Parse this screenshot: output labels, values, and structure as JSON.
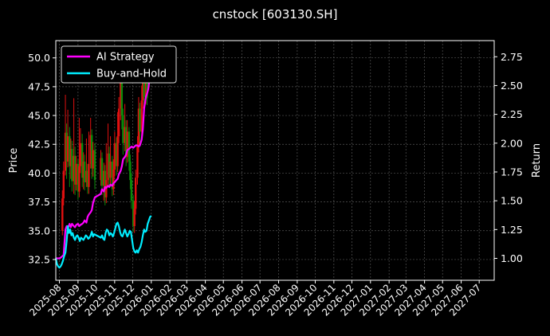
{
  "chart_data": {
    "type": "line",
    "title": "cnstock [603130.SH]",
    "ylabel_left": "Price",
    "ylabel_right": "Return",
    "xlabel": "",
    "grid": true,
    "legend_position": "upper-left",
    "x_ticks": [
      "2025-08",
      "2025-09",
      "2025-10",
      "2025-11",
      "2025-12",
      "2026-01",
      "2026-02",
      "2026-03",
      "2026-04",
      "2026-05",
      "2026-06",
      "2026-07",
      "2026-08",
      "2026-09",
      "2026-10",
      "2026-11",
      "2026-12",
      "2027-01",
      "2027-02",
      "2027-03",
      "2027-04",
      "2027-05",
      "2027-06",
      "2027-07"
    ],
    "xlim": [
      "2025-07-26",
      "2027-07-26"
    ],
    "ylim_left": [
      30.7,
      51.5
    ],
    "ylim_right": [
      0.81,
      2.89
    ],
    "y_ticks_left": [
      "32.5",
      "35.0",
      "37.5",
      "40.0",
      "42.5",
      "45.0",
      "47.5",
      "50.0"
    ],
    "y_ticks_right": [
      "1.00",
      "1.25",
      "1.50",
      "1.75",
      "2.00",
      "2.25",
      "2.50",
      "2.75"
    ],
    "colors": {
      "background": "#000000",
      "grid": "#555555",
      "ai_strategy": "#ff00ff",
      "buy_and_hold": "#00eeff",
      "candle_up": "#e01010",
      "candle_down": "#0a8a0a"
    },
    "series": [
      {
        "name": "AI Strategy",
        "axis": "right",
        "x": [
          "2025-07-26",
          "2025-07-29",
          "2025-08-01",
          "2025-08-04",
          "2025-08-06",
          "2025-08-08",
          "2025-08-11",
          "2025-08-13",
          "2025-08-15",
          "2025-08-18",
          "2025-08-20",
          "2025-08-22",
          "2025-08-25",
          "2025-08-27",
          "2025-08-29",
          "2025-09-01",
          "2025-09-03",
          "2025-09-05",
          "2025-09-08",
          "2025-09-10",
          "2025-09-12",
          "2025-09-15",
          "2025-09-17",
          "2025-09-19",
          "2025-09-22",
          "2025-09-24",
          "2025-09-26",
          "2025-09-29",
          "2025-10-09",
          "2025-10-11",
          "2025-10-14",
          "2025-10-16",
          "2025-10-18",
          "2025-10-21",
          "2025-10-23",
          "2025-10-25",
          "2025-10-28",
          "2025-10-30",
          "2025-11-01",
          "2025-11-04",
          "2025-11-06",
          "2025-11-08",
          "2025-11-11",
          "2025-11-13",
          "2025-11-15",
          "2025-11-18",
          "2025-11-20",
          "2025-11-22",
          "2025-11-25",
          "2025-11-27",
          "2025-11-29",
          "2025-12-02",
          "2025-12-04",
          "2025-12-06",
          "2025-12-09",
          "2025-12-11",
          "2025-12-13",
          "2025-12-16",
          "2025-12-18",
          "2025-12-20",
          "2025-12-23",
          "2025-12-25",
          "2025-12-27",
          "2025-12-29"
        ],
        "values": [
          1.0,
          1.0,
          1.0,
          1.01,
          1.02,
          1.03,
          1.25,
          1.28,
          1.26,
          1.3,
          1.27,
          1.3,
          1.28,
          1.27,
          1.29,
          1.3,
          1.28,
          1.29,
          1.3,
          1.31,
          1.33,
          1.31,
          1.36,
          1.38,
          1.4,
          1.42,
          1.48,
          1.53,
          1.56,
          1.6,
          1.58,
          1.62,
          1.61,
          1.63,
          1.62,
          1.64,
          1.63,
          1.65,
          1.66,
          1.68,
          1.69,
          1.73,
          1.76,
          1.8,
          1.86,
          1.88,
          1.9,
          1.94,
          1.95,
          1.96,
          1.97,
          1.96,
          1.97,
          1.98,
          1.98,
          1.97,
          1.98,
          2.03,
          2.12,
          2.3,
          2.4,
          2.43,
          2.47,
          2.55
        ]
      },
      {
        "name": "Buy-and-Hold",
        "axis": "right",
        "x": [
          "2025-07-26",
          "2025-07-28",
          "2025-07-30",
          "2025-08-01",
          "2025-08-03",
          "2025-08-05",
          "2025-08-07",
          "2025-08-09",
          "2025-08-11",
          "2025-08-13",
          "2025-08-15",
          "2025-08-17",
          "2025-08-19",
          "2025-08-21",
          "2025-08-23",
          "2025-08-25",
          "2025-08-27",
          "2025-08-29",
          "2025-08-31",
          "2025-09-02",
          "2025-09-04",
          "2025-09-06",
          "2025-09-08",
          "2025-09-10",
          "2025-09-12",
          "2025-09-14",
          "2025-09-16",
          "2025-09-18",
          "2025-09-20",
          "2025-09-22",
          "2025-09-24",
          "2025-09-26",
          "2025-09-28",
          "2025-10-09",
          "2025-10-11",
          "2025-10-13",
          "2025-10-15",
          "2025-10-17",
          "2025-10-19",
          "2025-10-21",
          "2025-10-23",
          "2025-10-25",
          "2025-10-27",
          "2025-10-29",
          "2025-10-31",
          "2025-11-02",
          "2025-11-04",
          "2025-11-06",
          "2025-11-08",
          "2025-11-10",
          "2025-11-12",
          "2025-11-14",
          "2025-11-16",
          "2025-11-18",
          "2025-11-20",
          "2025-11-22",
          "2025-11-24",
          "2025-11-26",
          "2025-11-28",
          "2025-11-30",
          "2025-12-02",
          "2025-12-04",
          "2025-12-06",
          "2025-12-08",
          "2025-12-10",
          "2025-12-12",
          "2025-12-14",
          "2025-12-16",
          "2025-12-18",
          "2025-12-20",
          "2025-12-22",
          "2025-12-24",
          "2025-12-26",
          "2025-12-28",
          "2025-12-30",
          "2026-01-01"
        ],
        "values": [
          1.0,
          0.95,
          0.93,
          0.92,
          0.93,
          0.95,
          0.98,
          1.02,
          1.05,
          1.15,
          1.28,
          1.22,
          1.25,
          1.2,
          1.22,
          1.18,
          1.16,
          1.19,
          1.2,
          1.18,
          1.15,
          1.18,
          1.17,
          1.16,
          1.18,
          1.2,
          1.19,
          1.17,
          1.18,
          1.2,
          1.23,
          1.19,
          1.21,
          1.18,
          1.2,
          1.17,
          1.16,
          1.22,
          1.25,
          1.24,
          1.2,
          1.22,
          1.21,
          1.19,
          1.22,
          1.26,
          1.3,
          1.31,
          1.28,
          1.23,
          1.2,
          1.19,
          1.22,
          1.25,
          1.22,
          1.19,
          1.21,
          1.24,
          1.23,
          1.16,
          1.09,
          1.06,
          1.05,
          1.07,
          1.05,
          1.08,
          1.1,
          1.14,
          1.2,
          1.25,
          1.23,
          1.24,
          1.3,
          1.33,
          1.36,
          1.37
        ]
      }
    ],
    "candles": [
      {
        "date": "2025-08-06",
        "open": 35.0,
        "close": 37.8,
        "low": 34.6,
        "high": 38.5
      },
      {
        "date": "2025-08-08",
        "open": 37.8,
        "close": 40.2,
        "low": 37.2,
        "high": 41.0
      },
      {
        "date": "2025-08-11",
        "open": 40.2,
        "close": 43.5,
        "low": 39.8,
        "high": 46.8
      },
      {
        "date": "2025-08-13",
        "open": 43.5,
        "close": 41.0,
        "low": 39.5,
        "high": 44.3
      },
      {
        "date": "2025-08-15",
        "open": 41.0,
        "close": 43.2,
        "low": 40.5,
        "high": 45.5
      },
      {
        "date": "2025-08-18",
        "open": 43.2,
        "close": 40.6,
        "low": 38.8,
        "high": 44.0
      },
      {
        "date": "2025-08-20",
        "open": 40.6,
        "close": 42.1,
        "low": 39.5,
        "high": 43.0
      },
      {
        "date": "2025-08-22",
        "open": 42.1,
        "close": 39.3,
        "low": 38.4,
        "high": 42.8
      },
      {
        "date": "2025-08-25",
        "open": 39.3,
        "close": 41.5,
        "low": 38.2,
        "high": 46.5
      },
      {
        "date": "2025-08-27",
        "open": 41.5,
        "close": 39.0,
        "low": 38.1,
        "high": 42.3
      },
      {
        "date": "2025-08-29",
        "open": 39.0,
        "close": 40.8,
        "low": 38.5,
        "high": 41.5
      },
      {
        "date": "2025-09-01",
        "open": 40.8,
        "close": 38.4,
        "low": 37.7,
        "high": 41.2
      },
      {
        "date": "2025-09-03",
        "open": 38.4,
        "close": 40.6,
        "low": 37.9,
        "high": 44.8
      },
      {
        "date": "2025-09-05",
        "open": 40.6,
        "close": 42.6,
        "low": 40.0,
        "high": 43.9
      },
      {
        "date": "2025-09-08",
        "open": 42.6,
        "close": 39.6,
        "low": 38.8,
        "high": 43.4
      },
      {
        "date": "2025-09-10",
        "open": 39.6,
        "close": 41.0,
        "low": 38.6,
        "high": 41.8
      },
      {
        "date": "2025-09-12",
        "open": 41.0,
        "close": 39.2,
        "low": 38.5,
        "high": 41.6
      },
      {
        "date": "2025-09-15",
        "open": 39.2,
        "close": 40.2,
        "low": 38.8,
        "high": 43.0
      },
      {
        "date": "2025-09-17",
        "open": 40.2,
        "close": 38.8,
        "low": 38.2,
        "high": 40.8
      },
      {
        "date": "2025-09-19",
        "open": 38.8,
        "close": 40.8,
        "low": 38.2,
        "high": 43.6
      },
      {
        "date": "2025-09-22",
        "open": 40.8,
        "close": 43.3,
        "low": 40.4,
        "high": 44.8
      },
      {
        "date": "2025-09-24",
        "open": 43.3,
        "close": 40.4,
        "low": 39.5,
        "high": 43.8
      },
      {
        "date": "2025-09-26",
        "open": 40.4,
        "close": 42.0,
        "low": 39.7,
        "high": 42.7
      },
      {
        "date": "2025-09-29",
        "open": 42.0,
        "close": 39.4,
        "low": 38.6,
        "high": 42.6
      },
      {
        "date": "2025-10-09",
        "open": 39.4,
        "close": 41.3,
        "low": 38.9,
        "high": 42.0
      },
      {
        "date": "2025-10-11",
        "open": 41.3,
        "close": 38.9,
        "low": 38.1,
        "high": 41.8
      },
      {
        "date": "2025-10-14",
        "open": 38.9,
        "close": 40.2,
        "low": 37.6,
        "high": 40.9
      },
      {
        "date": "2025-10-16",
        "open": 40.2,
        "close": 37.9,
        "low": 37.2,
        "high": 40.7
      },
      {
        "date": "2025-10-18",
        "open": 37.9,
        "close": 39.4,
        "low": 37.4,
        "high": 42.6
      },
      {
        "date": "2025-10-21",
        "open": 39.4,
        "close": 41.7,
        "low": 38.9,
        "high": 44.3
      },
      {
        "date": "2025-10-23",
        "open": 41.7,
        "close": 39.6,
        "low": 38.7,
        "high": 42.3
      },
      {
        "date": "2025-10-25",
        "open": 39.6,
        "close": 41.0,
        "low": 39.0,
        "high": 43.2
      },
      {
        "date": "2025-10-28",
        "open": 41.0,
        "close": 38.6,
        "low": 38.0,
        "high": 41.5
      },
      {
        "date": "2025-10-30",
        "open": 38.6,
        "close": 40.3,
        "low": 38.1,
        "high": 41.2
      },
      {
        "date": "2025-11-01",
        "open": 40.3,
        "close": 42.6,
        "low": 39.7,
        "high": 43.6
      },
      {
        "date": "2025-11-04",
        "open": 42.6,
        "close": 40.6,
        "low": 39.8,
        "high": 43.1
      },
      {
        "date": "2025-11-06",
        "open": 40.6,
        "close": 43.2,
        "low": 40.1,
        "high": 45.3
      },
      {
        "date": "2025-11-08",
        "open": 43.2,
        "close": 45.6,
        "low": 42.6,
        "high": 46.6
      },
      {
        "date": "2025-11-11",
        "open": 45.6,
        "close": 48.3,
        "low": 44.6,
        "high": 49.8
      },
      {
        "date": "2025-11-13",
        "open": 48.3,
        "close": 45.0,
        "low": 43.8,
        "high": 48.9
      },
      {
        "date": "2025-11-15",
        "open": 45.0,
        "close": 42.6,
        "low": 41.6,
        "high": 45.6
      },
      {
        "date": "2025-11-18",
        "open": 42.6,
        "close": 44.0,
        "low": 41.9,
        "high": 46.0
      },
      {
        "date": "2025-11-20",
        "open": 44.0,
        "close": 41.4,
        "low": 40.6,
        "high": 44.6
      },
      {
        "date": "2025-11-22",
        "open": 41.4,
        "close": 43.6,
        "low": 40.9,
        "high": 44.6
      },
      {
        "date": "2025-11-25",
        "open": 43.6,
        "close": 41.0,
        "low": 40.2,
        "high": 44.0
      },
      {
        "date": "2025-11-27",
        "open": 41.0,
        "close": 39.4,
        "low": 38.6,
        "high": 41.6
      },
      {
        "date": "2025-11-29",
        "open": 39.4,
        "close": 37.6,
        "low": 36.9,
        "high": 40.0
      },
      {
        "date": "2025-12-02",
        "open": 37.6,
        "close": 35.4,
        "low": 34.9,
        "high": 38.1
      },
      {
        "date": "2025-12-04",
        "open": 35.4,
        "close": 36.9,
        "low": 34.8,
        "high": 37.6
      },
      {
        "date": "2025-12-06",
        "open": 36.9,
        "close": 39.6,
        "low": 36.4,
        "high": 40.3
      },
      {
        "date": "2025-12-09",
        "open": 39.6,
        "close": 42.4,
        "low": 39.0,
        "high": 43.2
      },
      {
        "date": "2025-12-11",
        "open": 42.4,
        "close": 45.6,
        "low": 41.8,
        "high": 46.6
      },
      {
        "date": "2025-12-13",
        "open": 45.6,
        "close": 43.6,
        "low": 42.6,
        "high": 46.1
      },
      {
        "date": "2025-12-16",
        "open": 43.6,
        "close": 46.3,
        "low": 43.0,
        "high": 47.6
      },
      {
        "date": "2025-12-18",
        "open": 46.3,
        "close": 48.8,
        "low": 45.6,
        "high": 49.6
      },
      {
        "date": "2025-12-20",
        "open": 48.8,
        "close": 46.6,
        "low": 45.8,
        "high": 49.4
      },
      {
        "date": "2025-12-23",
        "open": 46.6,
        "close": 48.3,
        "low": 46.0,
        "high": 49.0
      },
      {
        "date": "2025-12-25",
        "open": 48.3,
        "close": 46.5,
        "low": 45.9,
        "high": 48.8
      }
    ]
  }
}
